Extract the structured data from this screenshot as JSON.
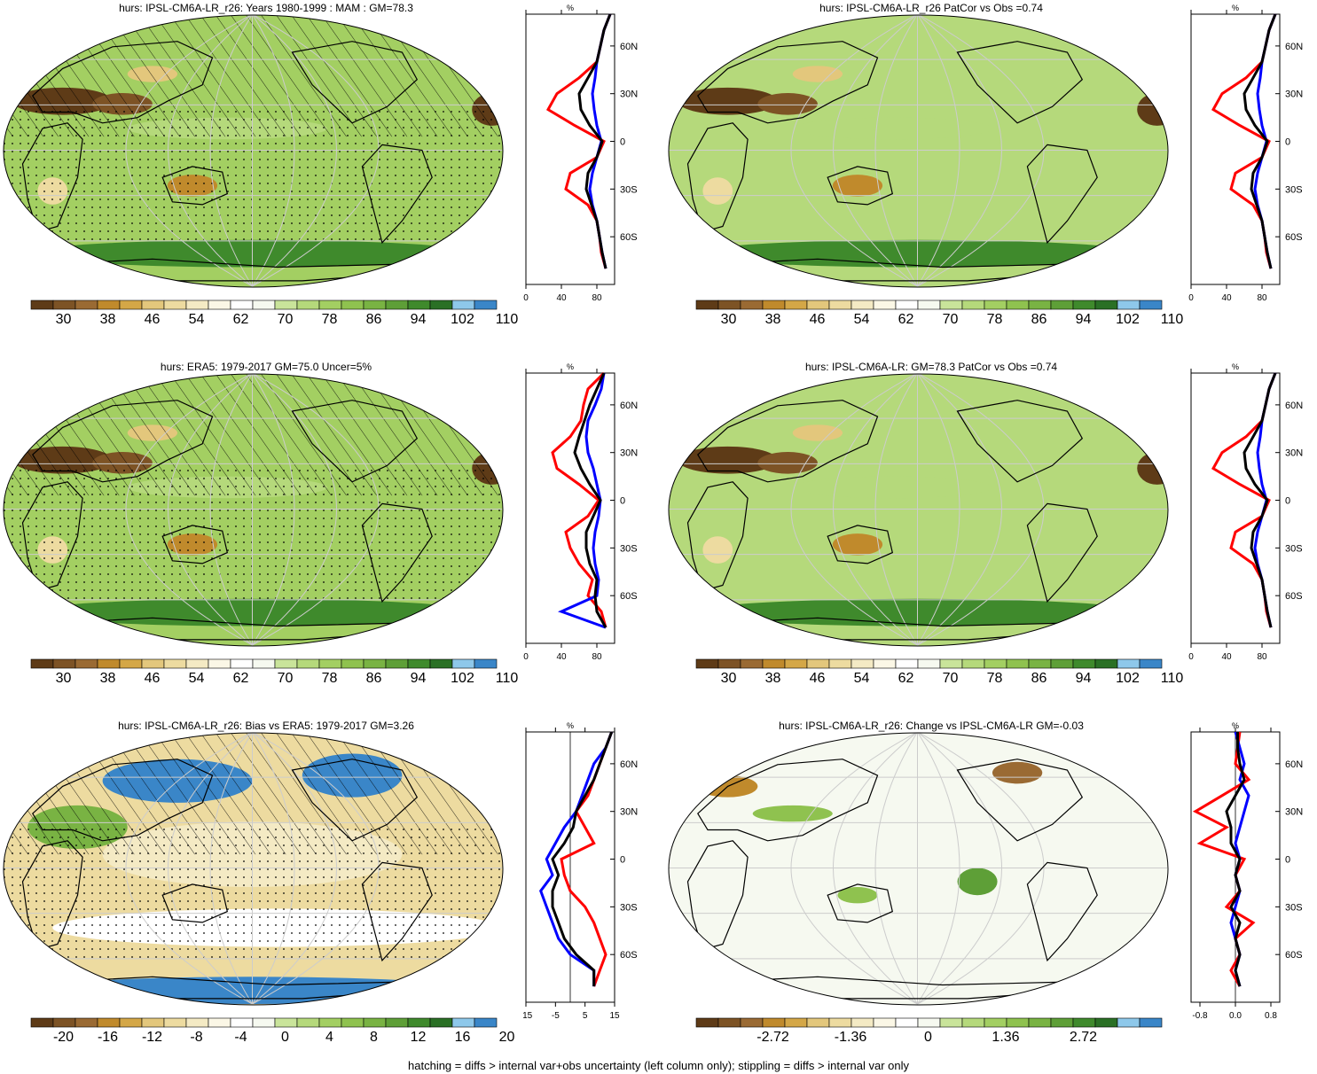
{
  "colors": {
    "full": [
      "#5e3b17",
      "#7d5325",
      "#9a6a33",
      "#c08a2c",
      "#d4a747",
      "#e3c77c",
      "#eddba0",
      "#f4eac4",
      "#fbf7e6",
      "#ffffff",
      "#f6f9f0",
      "#c9e49a",
      "#b5d97b",
      "#a3cf62",
      "#8fc24f",
      "#79b343",
      "#5e9f37",
      "#3f8a2c",
      "#2a7025",
      "#8ec8ea",
      "#3a86c8"
    ],
    "land": "#000000",
    "grid": "#cccccc",
    "obs": "#ff0000",
    "model": "#0000ff",
    "mean": "#000000"
  },
  "panels": [
    {
      "id": "top-left",
      "title": "hurs: IPSL-CM6A-LR_r26: Years 1980-1999 : MAM : GM=78.3",
      "base_color": "#a3cf62",
      "hatch": true,
      "stipple": true,
      "cbar_labels": [
        "30",
        "38",
        "46",
        "54",
        "62",
        "70",
        "78",
        "86",
        "94",
        "102",
        "110"
      ],
      "zonal": {
        "unit": "%",
        "xticks": [
          "0",
          "40",
          "80"
        ],
        "xlim": [
          0,
          100
        ],
        "yticks": [
          "60N",
          "30N",
          "0",
          "30S",
          "60S"
        ],
        "lat": [
          80,
          70,
          60,
          50,
          40,
          30,
          20,
          10,
          0,
          -10,
          -20,
          -30,
          -40,
          -50,
          -60,
          -70,
          -80
        ],
        "red": [
          95,
          88,
          84,
          80,
          60,
          35,
          25,
          55,
          88,
          80,
          50,
          45,
          70,
          80,
          83,
          85,
          90
        ],
        "blue": [
          95,
          88,
          84,
          80,
          78,
          75,
          77,
          80,
          85,
          80,
          75,
          72,
          75,
          80,
          83,
          86,
          90
        ],
        "black": [
          95,
          88,
          84,
          80,
          70,
          60,
          62,
          72,
          86,
          80,
          70,
          68,
          74,
          80,
          83,
          86,
          90
        ]
      }
    },
    {
      "id": "top-right",
      "title": "hurs: IPSL-CM6A-LR_r26 PatCor vs Obs =0.74",
      "base_color": "#b5d97b",
      "hatch": false,
      "stipple": false,
      "cbar_labels": [
        "30",
        "38",
        "46",
        "54",
        "62",
        "70",
        "78",
        "86",
        "94",
        "102",
        "110"
      ],
      "zonal": {
        "unit": "%",
        "xticks": [
          "0",
          "40",
          "80"
        ],
        "xlim": [
          0,
          100
        ],
        "yticks": [
          "60N",
          "30N",
          "0",
          "30S",
          "60S"
        ],
        "lat": [
          80,
          70,
          60,
          50,
          40,
          30,
          20,
          10,
          0,
          -10,
          -20,
          -30,
          -40,
          -50,
          -60,
          -70,
          -80
        ],
        "red": [
          95,
          88,
          84,
          80,
          62,
          35,
          25,
          55,
          88,
          80,
          50,
          45,
          70,
          80,
          83,
          85,
          90
        ],
        "blue": [
          95,
          88,
          84,
          80,
          78,
          75,
          77,
          80,
          85,
          80,
          75,
          72,
          75,
          80,
          83,
          86,
          90
        ],
        "black": [
          95,
          88,
          84,
          80,
          70,
          60,
          62,
          72,
          86,
          80,
          70,
          68,
          74,
          80,
          83,
          86,
          90
        ]
      }
    },
    {
      "id": "mid-left",
      "title": "hurs: ERA5: 1979-2017 GM=75.0 Uncer=5%",
      "base_color": "#a3cf62",
      "hatch": true,
      "stipple": true,
      "cbar_labels": [
        "30",
        "38",
        "46",
        "54",
        "62",
        "70",
        "78",
        "86",
        "94",
        "102",
        "110"
      ],
      "zonal": {
        "unit": "%",
        "xticks": [
          "0",
          "40",
          "80"
        ],
        "xlim": [
          0,
          100
        ],
        "yticks": [
          "60N",
          "30N",
          "0",
          "30S",
          "60S"
        ],
        "lat": [
          80,
          70,
          60,
          50,
          40,
          30,
          20,
          10,
          0,
          -10,
          -20,
          -30,
          -40,
          -50,
          -60,
          -70,
          -80
        ],
        "red": [
          88,
          70,
          65,
          62,
          50,
          30,
          35,
          60,
          82,
          70,
          45,
          50,
          60,
          75,
          70,
          85,
          90
        ],
        "blue": [
          88,
          85,
          78,
          70,
          68,
          70,
          76,
          80,
          84,
          82,
          78,
          76,
          78,
          82,
          80,
          40,
          90
        ],
        "black": [
          88,
          80,
          72,
          66,
          60,
          55,
          62,
          72,
          84,
          76,
          68,
          68,
          72,
          80,
          78,
          80,
          90
        ]
      }
    },
    {
      "id": "mid-right",
      "title": "hurs: IPSL-CM6A-LR: GM=78.3 PatCor vs Obs =0.74",
      "base_color": "#b5d97b",
      "hatch": false,
      "stipple": false,
      "cbar_labels": [
        "30",
        "38",
        "46",
        "54",
        "62",
        "70",
        "78",
        "86",
        "94",
        "102",
        "110"
      ],
      "zonal": {
        "unit": "%",
        "xticks": [
          "0",
          "40",
          "80"
        ],
        "xlim": [
          0,
          100
        ],
        "yticks": [
          "60N",
          "30N",
          "0",
          "30S",
          "60S"
        ],
        "lat": [
          80,
          70,
          60,
          50,
          40,
          30,
          20,
          10,
          0,
          -10,
          -20,
          -30,
          -40,
          -50,
          -60,
          -70,
          -80
        ],
        "red": [
          95,
          88,
          84,
          80,
          62,
          35,
          25,
          55,
          88,
          80,
          50,
          45,
          70,
          80,
          83,
          85,
          90
        ],
        "blue": [
          95,
          88,
          84,
          80,
          78,
          75,
          77,
          80,
          85,
          80,
          75,
          72,
          75,
          80,
          83,
          86,
          90
        ],
        "black": [
          95,
          88,
          84,
          80,
          70,
          60,
          62,
          72,
          86,
          80,
          70,
          68,
          74,
          80,
          83,
          86,
          90
        ]
      }
    },
    {
      "id": "bot-left",
      "title": "hurs: IPSL-CM6A-LR_r26: Bias vs ERA5: 1979-2017 GM=3.26",
      "base_color": "#eddba0",
      "hatch": true,
      "stipple": true,
      "cbar_labels": [
        "-20",
        "-16",
        "-12",
        "-8",
        "-4",
        "0",
        "4",
        "8",
        "12",
        "16",
        "20"
      ],
      "zonal": {
        "unit": "%",
        "xticks": [
          "-15",
          "-5",
          "5",
          "15"
        ],
        "xlim": [
          -15,
          15
        ],
        "yticks": [
          "60N",
          "30N",
          "0",
          "30S",
          "60S"
        ],
        "lat": [
          80,
          70,
          60,
          50,
          40,
          30,
          20,
          10,
          0,
          -10,
          -20,
          -30,
          -40,
          -50,
          -60,
          -70,
          -80
        ],
        "red": [
          14,
          12,
          10,
          8,
          6,
          2,
          5,
          8,
          -3,
          -2,
          0,
          5,
          8,
          10,
          12,
          10,
          8
        ],
        "blue": [
          14,
          12,
          8,
          6,
          4,
          2,
          -2,
          -5,
          -8,
          -6,
          -10,
          -8,
          -6,
          -4,
          0,
          8,
          8
        ],
        "black": [
          14,
          12,
          10,
          8,
          5,
          2,
          1,
          -2,
          -6,
          -4,
          -6,
          -6,
          -4,
          -2,
          2,
          8,
          8
        ]
      }
    },
    {
      "id": "bot-right",
      "title": "hurs: IPSL-CM6A-LR_r26: Change vs IPSL-CM6A-LR GM=-0.03",
      "base_color": "#f6f9f0",
      "hatch": false,
      "stipple": false,
      "cbar_labels": [
        "-2.72",
        "-1.36",
        "0",
        "1.36",
        "2.72"
      ],
      "zonal": {
        "unit": "%",
        "xticks": [
          "-0.8",
          "0.0",
          "0.8"
        ],
        "xlim": [
          -1,
          1
        ],
        "yticks": [
          "60N",
          "30N",
          "0",
          "30S",
          "60S"
        ],
        "lat": [
          80,
          70,
          60,
          50,
          40,
          30,
          20,
          10,
          0,
          -10,
          -20,
          -30,
          -40,
          -50,
          -60,
          -70,
          -80
        ],
        "red": [
          0.1,
          0.05,
          0.0,
          0.3,
          -0.3,
          -0.9,
          -0.2,
          -0.8,
          0.2,
          0.0,
          0.1,
          -0.2,
          0.4,
          0.0,
          0.1,
          -0.1,
          0.1
        ],
        "blue": [
          0.0,
          0.1,
          0.2,
          0.1,
          0.3,
          0.2,
          0.1,
          0.0,
          0.1,
          0.0,
          0.1,
          0.0,
          -0.1,
          0.0,
          0.1,
          0.0,
          0.1
        ],
        "black": [
          0.05,
          0.05,
          0.1,
          0.2,
          0.0,
          -0.2,
          -0.1,
          -0.1,
          0.1,
          0.0,
          0.1,
          -0.1,
          0.1,
          0.0,
          0.1,
          0.0,
          0.1
        ]
      }
    }
  ],
  "footer": "hatching = diffs > internal var+obs uncertainty (left column only); stippling = diffs > internal var only"
}
